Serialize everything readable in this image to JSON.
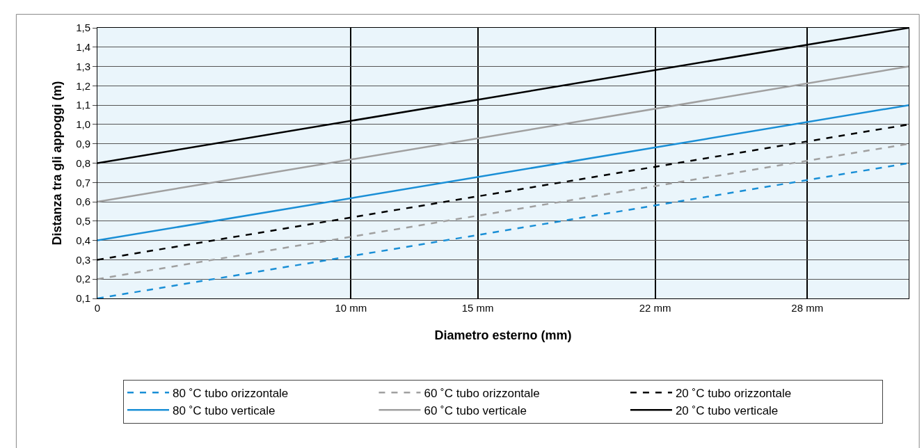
{
  "chart_data": {
    "type": "line",
    "xlabel": "Diametro esterno (mm)",
    "ylabel": "Distanza tra gli appoggi (m)",
    "x": [
      0,
      32
    ],
    "xlim": [
      0,
      32
    ],
    "xticks": [
      0,
      {
        "value": 10,
        "label": "10 mm"
      },
      {
        "value": 15,
        "label": "15 mm"
      },
      {
        "value": 22,
        "label": "22 mm"
      },
      {
        "value": 28,
        "label": "28 mm"
      }
    ],
    "ylim": [
      0.1,
      1.5
    ],
    "yticks": [
      {
        "value": 0.1,
        "label": "0,1"
      },
      {
        "value": 0.2,
        "label": "0,2"
      },
      {
        "value": 0.3,
        "label": "0,3"
      },
      {
        "value": 0.4,
        "label": "0,4"
      },
      {
        "value": 0.5,
        "label": "0,5"
      },
      {
        "value": 0.6,
        "label": "0,6"
      },
      {
        "value": 0.7,
        "label": "0,7"
      },
      {
        "value": 0.8,
        "label": "0,8"
      },
      {
        "value": 0.9,
        "label": "0,9"
      },
      {
        "value": 1.0,
        "label": "1,0"
      },
      {
        "value": 1.1,
        "label": "1,1"
      },
      {
        "value": 1.2,
        "label": "1,2"
      },
      {
        "value": 1.3,
        "label": "1,3"
      },
      {
        "value": 1.4,
        "label": "1,4"
      },
      {
        "value": 1.5,
        "label": "1,5"
      }
    ],
    "grid": true,
    "legend": "bottom",
    "marker": "none",
    "series": [
      {
        "name": "80 ˚C tubo orizzontale",
        "color": "#1a8fd6",
        "line_style": "dashed",
        "values": [
          0.1,
          0.8
        ]
      },
      {
        "name": "60 ˚C tubo orizzontale",
        "color": "#a0a0a0",
        "line_style": "dashed",
        "values": [
          0.2,
          0.9
        ]
      },
      {
        "name": "20 ˚C tubo orizzontale",
        "color": "#000000",
        "line_style": "dashed",
        "values": [
          0.3,
          1.0
        ]
      },
      {
        "name": "80 ˚C tubo verticale",
        "color": "#1a8fd6",
        "line_style": "solid",
        "values": [
          0.4,
          1.1
        ]
      },
      {
        "name": "60 ˚C tubo verticale",
        "color": "#a0a0a0",
        "line_style": "solid",
        "values": [
          0.6,
          1.3
        ]
      },
      {
        "name": "20 ˚C tubo verticale",
        "color": "#000000",
        "line_style": "solid",
        "values": [
          0.8,
          1.5
        ]
      }
    ]
  }
}
